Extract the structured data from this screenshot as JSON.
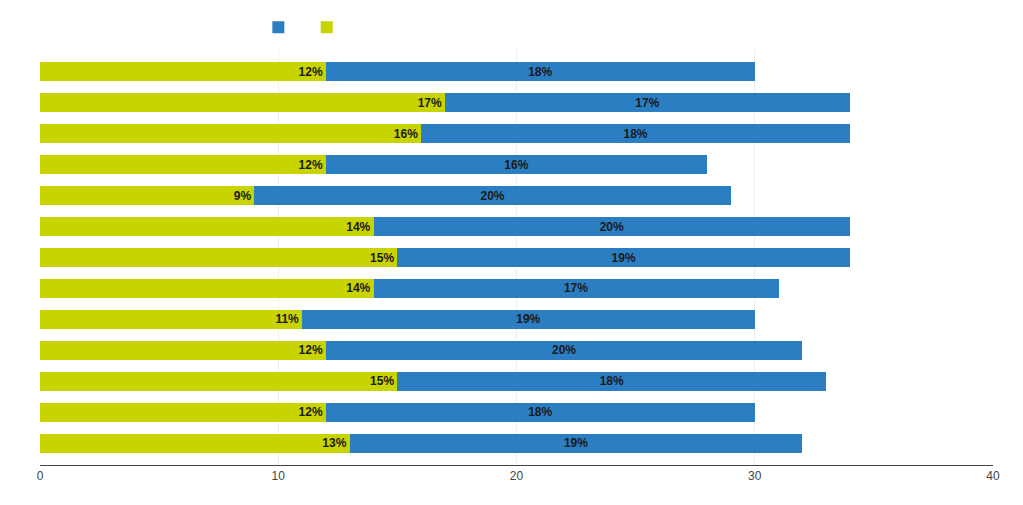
{
  "chart_data": {
    "type": "bar",
    "orientation": "horizontal",
    "stacked": true,
    "categories": [
      null,
      null,
      null,
      null,
      null,
      null,
      null,
      null,
      null,
      null,
      null,
      null,
      null
    ],
    "series": [
      {
        "name": " ",
        "color": "#c8d400",
        "values": [
          12,
          17,
          16,
          12,
          9,
          14,
          15,
          14,
          11,
          12,
          15,
          12,
          13
        ],
        "value_labels": [
          "12%",
          "17%",
          "16%",
          "12%",
          "9%",
          "14%",
          "15%",
          "14%",
          "11%",
          "12%",
          "15%",
          "12%",
          "13%"
        ]
      },
      {
        "name": " ",
        "color": "#2b7ec1",
        "values": [
          18,
          17,
          18,
          16,
          20,
          20,
          19,
          17,
          19,
          20,
          18,
          18,
          19
        ],
        "value_labels": [
          "18%",
          "17%",
          "18%",
          "16%",
          "20%",
          "20%",
          "19%",
          "17%",
          "19%",
          "20%",
          "18%",
          "18%",
          "19%"
        ]
      }
    ],
    "xlim": [
      0,
      40
    ],
    "xticks": [
      0,
      10,
      20,
      30,
      40
    ],
    "grid": true,
    "data_labels": true,
    "tick_labels": "x",
    "legend": "top"
  }
}
